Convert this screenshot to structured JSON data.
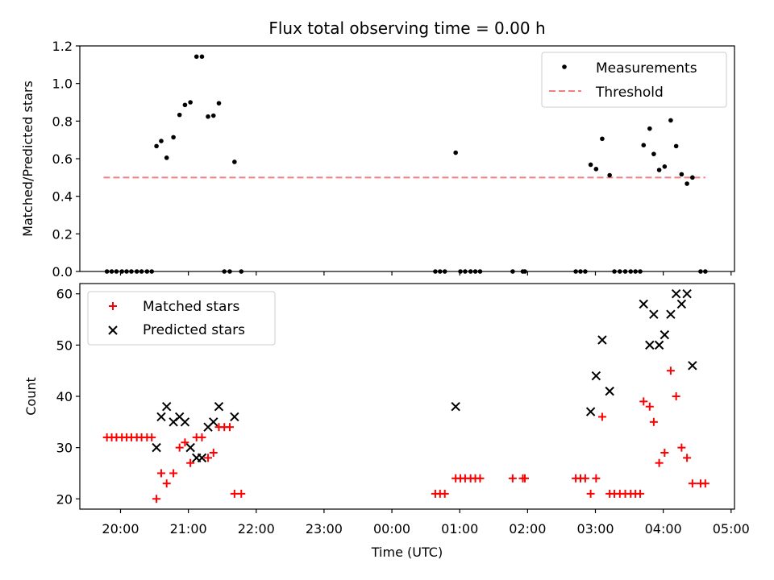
{
  "chart_data": [
    {
      "type": "scatter",
      "title": "Flux total observing time = 0.00 h",
      "xlabel": "",
      "ylabel": "Matched/Predicted stars",
      "ylim": [
        0,
        1.2
      ],
      "yticks": [
        "0.0",
        "0.2",
        "0.4",
        "0.6",
        "0.8",
        "1.0",
        "1.2"
      ],
      "xunit": "hours since 00:00 UTC",
      "xlim": [
        -4.6,
        5.05
      ],
      "legend": {
        "position": "top-right",
        "entries": [
          "Measurements",
          "Threshold"
        ]
      },
      "series": [
        {
          "name": "Measurements",
          "color": "#000000",
          "points": [
            [
              -4.2,
              0
            ],
            [
              -4.13,
              0
            ],
            [
              -4.06,
              0
            ],
            [
              -3.98,
              0
            ],
            [
              -3.91,
              0
            ],
            [
              -3.84,
              0
            ],
            [
              -3.76,
              0
            ],
            [
              -3.69,
              0
            ],
            [
              -3.61,
              0
            ],
            [
              -3.54,
              0
            ],
            [
              -3.47,
              0.667
            ],
            [
              -3.4,
              0.694
            ],
            [
              -3.32,
              0.605
            ],
            [
              -3.22,
              0.714
            ],
            [
              -3.13,
              0.833
            ],
            [
              -3.05,
              0.886
            ],
            [
              -2.97,
              0.9
            ],
            [
              -2.88,
              1.143
            ],
            [
              -2.8,
              1.143
            ],
            [
              -2.71,
              0.824
            ],
            [
              -2.63,
              0.829
            ],
            [
              -2.55,
              0.895
            ],
            [
              -2.47,
              0
            ],
            [
              -2.39,
              0
            ],
            [
              -2.32,
              0.583
            ],
            [
              -2.22,
              0
            ],
            [
              0.64,
              0
            ],
            [
              0.71,
              0
            ],
            [
              0.78,
              0
            ],
            [
              0.94,
              0.632
            ],
            [
              1.01,
              0
            ],
            [
              1.08,
              0
            ],
            [
              1.16,
              0
            ],
            [
              1.23,
              0
            ],
            [
              1.3,
              0
            ],
            [
              1.78,
              0
            ],
            [
              1.93,
              0
            ],
            [
              1.96,
              0
            ],
            [
              2.71,
              0
            ],
            [
              2.78,
              0
            ],
            [
              2.85,
              0
            ],
            [
              2.93,
              0.568
            ],
            [
              3.01,
              0.545
            ],
            [
              3.1,
              0.706
            ],
            [
              3.21,
              0.512
            ],
            [
              3.28,
              0
            ],
            [
              3.36,
              0
            ],
            [
              3.44,
              0
            ],
            [
              3.52,
              0
            ],
            [
              3.59,
              0
            ],
            [
              3.66,
              0
            ],
            [
              3.71,
              0.672
            ],
            [
              3.8,
              0.76
            ],
            [
              3.86,
              0.625
            ],
            [
              3.94,
              0.54
            ],
            [
              4.02,
              0.558
            ],
            [
              4.11,
              0.804
            ],
            [
              4.19,
              0.667
            ],
            [
              4.27,
              0.517
            ],
            [
              4.35,
              0.467
            ],
            [
              4.43,
              0.5
            ],
            [
              4.55,
              0
            ],
            [
              4.62,
              0
            ]
          ]
        },
        {
          "name": "Threshold",
          "color": "#f08080",
          "style": "dashed",
          "x": [
            -4.25,
            4.62
          ],
          "y": [
            0.5,
            0.5
          ]
        }
      ]
    },
    {
      "type": "scatter",
      "title": "",
      "xlabel": "Time (UTC)",
      "ylabel": "Count",
      "ylim": [
        18,
        62
      ],
      "yticks": [
        "20",
        "30",
        "40",
        "50",
        "60"
      ],
      "xticks": [
        "20:00",
        "21:00",
        "22:00",
        "23:00",
        "00:00",
        "01:00",
        "02:00",
        "03:00",
        "04:00",
        "05:00"
      ],
      "xunit": "hours since 00:00 UTC",
      "xlim": [
        -4.6,
        5.05
      ],
      "legend": {
        "position": "top-left",
        "entries": [
          "Matched stars",
          "Predicted stars"
        ]
      },
      "series": [
        {
          "name": "Matched stars",
          "color": "#ff0000",
          "marker": "plus",
          "points": [
            [
              -4.2,
              32
            ],
            [
              -4.13,
              32
            ],
            [
              -4.06,
              32
            ],
            [
              -3.98,
              32
            ],
            [
              -3.91,
              32
            ],
            [
              -3.84,
              32
            ],
            [
              -3.76,
              32
            ],
            [
              -3.69,
              32
            ],
            [
              -3.61,
              32
            ],
            [
              -3.54,
              32
            ],
            [
              -3.47,
              20
            ],
            [
              -3.4,
              25
            ],
            [
              -3.32,
              23
            ],
            [
              -3.22,
              25
            ],
            [
              -3.13,
              30
            ],
            [
              -3.05,
              31
            ],
            [
              -2.97,
              27
            ],
            [
              -2.88,
              32
            ],
            [
              -2.8,
              32
            ],
            [
              -2.71,
              28
            ],
            [
              -2.63,
              29
            ],
            [
              -2.55,
              34
            ],
            [
              -2.47,
              34
            ],
            [
              -2.39,
              34
            ],
            [
              -2.32,
              21
            ],
            [
              -2.22,
              21
            ],
            [
              0.64,
              21
            ],
            [
              0.71,
              21
            ],
            [
              0.78,
              21
            ],
            [
              0.94,
              24
            ],
            [
              1.01,
              24
            ],
            [
              1.08,
              24
            ],
            [
              1.16,
              24
            ],
            [
              1.23,
              24
            ],
            [
              1.3,
              24
            ],
            [
              1.78,
              24
            ],
            [
              1.93,
              24
            ],
            [
              1.96,
              24
            ],
            [
              2.71,
              24
            ],
            [
              2.78,
              24
            ],
            [
              2.85,
              24
            ],
            [
              2.93,
              21
            ],
            [
              3.01,
              24
            ],
            [
              3.1,
              36
            ],
            [
              3.21,
              21
            ],
            [
              3.28,
              21
            ],
            [
              3.36,
              21
            ],
            [
              3.44,
              21
            ],
            [
              3.52,
              21
            ],
            [
              3.59,
              21
            ],
            [
              3.66,
              21
            ],
            [
              3.71,
              39
            ],
            [
              3.8,
              38
            ],
            [
              3.86,
              35
            ],
            [
              3.94,
              27
            ],
            [
              4.02,
              29
            ],
            [
              4.11,
              45
            ],
            [
              4.19,
              40
            ],
            [
              4.27,
              30
            ],
            [
              4.35,
              28
            ],
            [
              4.43,
              23
            ],
            [
              4.55,
              23
            ],
            [
              4.62,
              23
            ]
          ]
        },
        {
          "name": "Predicted stars",
          "color": "#000000",
          "marker": "x",
          "points": [
            [
              -3.47,
              30
            ],
            [
              -3.4,
              36
            ],
            [
              -3.32,
              38
            ],
            [
              -3.22,
              35
            ],
            [
              -3.13,
              36
            ],
            [
              -3.05,
              35
            ],
            [
              -2.97,
              30
            ],
            [
              -2.88,
              28
            ],
            [
              -2.8,
              28
            ],
            [
              -2.71,
              34
            ],
            [
              -2.63,
              35
            ],
            [
              -2.55,
              38
            ],
            [
              -2.32,
              36
            ],
            [
              0.94,
              38
            ],
            [
              2.93,
              37
            ],
            [
              3.01,
              44
            ],
            [
              3.1,
              51
            ],
            [
              3.21,
              41
            ],
            [
              3.71,
              58
            ],
            [
              3.8,
              50
            ],
            [
              3.86,
              56
            ],
            [
              3.94,
              50
            ],
            [
              4.02,
              52
            ],
            [
              4.11,
              56
            ],
            [
              4.19,
              60
            ],
            [
              4.27,
              58
            ],
            [
              4.35,
              60
            ],
            [
              4.43,
              46
            ]
          ]
        }
      ]
    }
  ]
}
